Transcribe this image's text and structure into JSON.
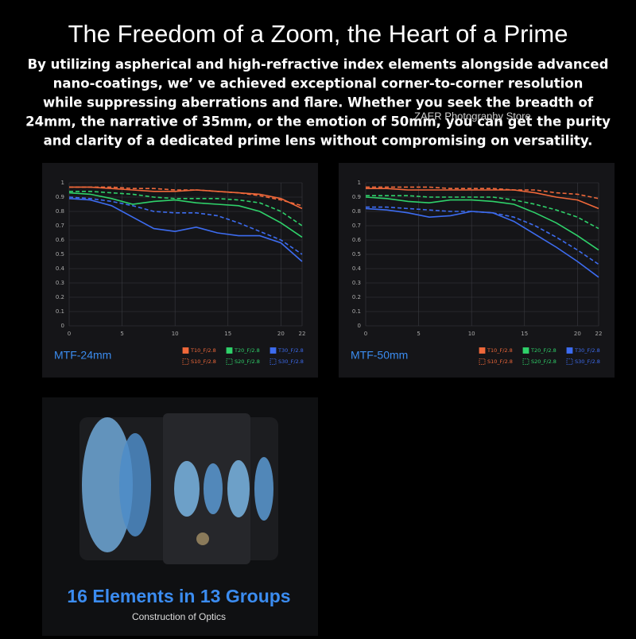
{
  "header": {
    "title": "The Freedom of a Zoom, the Heart of a Prime",
    "body": [
      "By utilizing aspherical and high-refractive index elements alongside advanced",
      "nano-coatings, we’ ve achieved exceptional corner-to-corner resolution",
      "while suppressing aberrations and flare. Whether you seek the breadth of",
      "24mm, the narrative of 35mm, or the emotion of 50mm, you can get the purity",
      "and clarity of a dedicated prime lens without compromising on versatility."
    ]
  },
  "watermark": "ZAER Photography Store",
  "chart_data": [
    {
      "type": "line",
      "title": "MTF-24mm",
      "x": [
        0,
        2,
        4,
        6,
        8,
        10,
        12,
        14,
        16,
        18,
        20,
        22
      ],
      "xlim": [
        0,
        22
      ],
      "xticks": [
        0,
        5,
        10,
        15,
        20,
        22
      ],
      "ylim": [
        0,
        1
      ],
      "yticks": [
        0,
        0.1,
        0.2,
        0.3,
        0.4,
        0.5,
        0.6,
        0.7,
        0.8,
        0.9,
        1
      ],
      "grid": true,
      "series": [
        {
          "name": "T10_F/2.8",
          "color": "#f0683a",
          "dashed": false,
          "values": [
            0.97,
            0.97,
            0.96,
            0.95,
            0.94,
            0.94,
            0.95,
            0.94,
            0.93,
            0.92,
            0.89,
            0.82
          ]
        },
        {
          "name": "S10_F/2.8",
          "color": "#f0683a",
          "dashed": true,
          "values": [
            0.97,
            0.97,
            0.97,
            0.96,
            0.96,
            0.95,
            0.95,
            0.94,
            0.93,
            0.91,
            0.88,
            0.84
          ]
        },
        {
          "name": "T20_F/2.8",
          "color": "#2fd16a",
          "dashed": false,
          "values": [
            0.93,
            0.92,
            0.89,
            0.85,
            0.87,
            0.88,
            0.86,
            0.85,
            0.84,
            0.8,
            0.72,
            0.62
          ]
        },
        {
          "name": "S20_F/2.8",
          "color": "#2fd16a",
          "dashed": true,
          "values": [
            0.94,
            0.94,
            0.93,
            0.92,
            0.9,
            0.89,
            0.89,
            0.89,
            0.88,
            0.86,
            0.8,
            0.7
          ]
        },
        {
          "name": "T30_F/2.8",
          "color": "#3d6cf0",
          "dashed": false,
          "values": [
            0.89,
            0.88,
            0.84,
            0.76,
            0.68,
            0.66,
            0.69,
            0.65,
            0.63,
            0.63,
            0.58,
            0.45
          ]
        },
        {
          "name": "S30_F/2.8",
          "color": "#3d6cf0",
          "dashed": true,
          "values": [
            0.9,
            0.89,
            0.87,
            0.84,
            0.8,
            0.79,
            0.79,
            0.77,
            0.72,
            0.66,
            0.6,
            0.5
          ]
        }
      ]
    },
    {
      "type": "line",
      "title": "MTF-50mm",
      "x": [
        0,
        2,
        4,
        6,
        8,
        10,
        12,
        14,
        16,
        18,
        20,
        22
      ],
      "xlim": [
        0,
        22
      ],
      "xticks": [
        0,
        5,
        10,
        15,
        20,
        22
      ],
      "ylim": [
        0,
        1
      ],
      "yticks": [
        0,
        0.1,
        0.2,
        0.3,
        0.4,
        0.5,
        0.6,
        0.7,
        0.8,
        0.9,
        1
      ],
      "grid": true,
      "series": [
        {
          "name": "T10_F/2.8",
          "color": "#f0683a",
          "dashed": false,
          "values": [
            0.96,
            0.96,
            0.95,
            0.95,
            0.95,
            0.95,
            0.95,
            0.95,
            0.93,
            0.9,
            0.88,
            0.82
          ]
        },
        {
          "name": "S10_F/2.8",
          "color": "#f0683a",
          "dashed": true,
          "values": [
            0.97,
            0.97,
            0.97,
            0.97,
            0.96,
            0.96,
            0.96,
            0.95,
            0.95,
            0.93,
            0.92,
            0.89
          ]
        },
        {
          "name": "T20_F/2.8",
          "color": "#2fd16a",
          "dashed": false,
          "values": [
            0.9,
            0.89,
            0.87,
            0.86,
            0.88,
            0.88,
            0.87,
            0.85,
            0.79,
            0.72,
            0.63,
            0.53
          ]
        },
        {
          "name": "S20_F/2.8",
          "color": "#2fd16a",
          "dashed": true,
          "values": [
            0.91,
            0.91,
            0.91,
            0.9,
            0.9,
            0.9,
            0.9,
            0.88,
            0.85,
            0.81,
            0.76,
            0.68
          ]
        },
        {
          "name": "T30_F/2.8",
          "color": "#3d6cf0",
          "dashed": false,
          "values": [
            0.82,
            0.81,
            0.79,
            0.76,
            0.77,
            0.8,
            0.79,
            0.73,
            0.64,
            0.55,
            0.45,
            0.34
          ]
        },
        {
          "name": "S30_F/2.8",
          "color": "#3d6cf0",
          "dashed": true,
          "values": [
            0.83,
            0.83,
            0.82,
            0.81,
            0.8,
            0.8,
            0.79,
            0.76,
            0.7,
            0.62,
            0.53,
            0.43
          ]
        }
      ]
    }
  ],
  "optics": {
    "heading": "16 Elements in 13 Groups",
    "caption": "Construction of Optics"
  }
}
